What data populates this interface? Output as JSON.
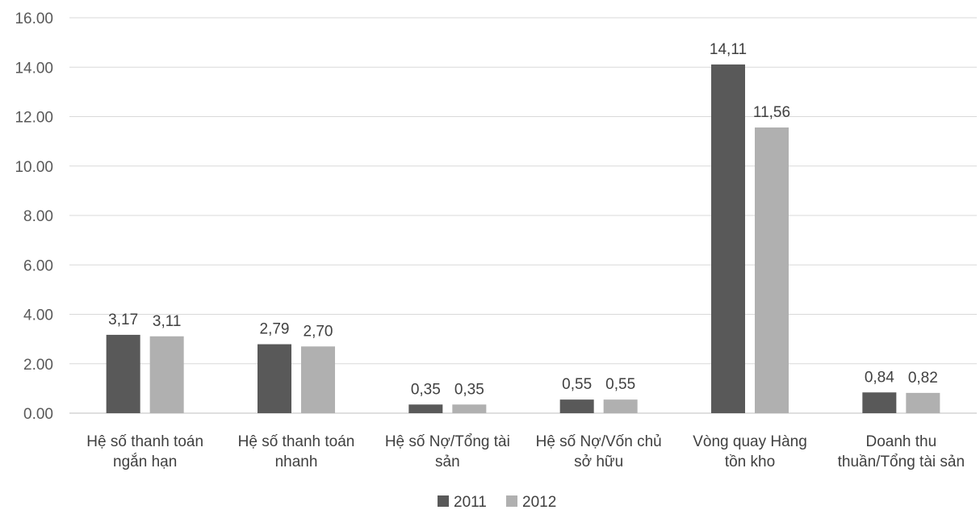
{
  "chart_data": {
    "type": "bar",
    "categories": [
      [
        "Hệ số thanh toán",
        "ngắn hạn"
      ],
      [
        "Hệ số thanh toán",
        "nhanh"
      ],
      [
        "Hệ số Nợ/Tổng tài",
        "sản"
      ],
      [
        "Hệ số Nợ/Vốn chủ",
        "sở hữu"
      ],
      [
        "Vòng quay Hàng",
        "tồn kho"
      ],
      [
        "Doanh thu",
        "thuần/Tổng tài sản"
      ]
    ],
    "series": [
      {
        "name": "2011",
        "color": "#595959",
        "values": [
          3.17,
          2.79,
          0.35,
          0.55,
          14.11,
          0.84
        ],
        "labels": [
          "3,17",
          "2,79",
          "0,35",
          "0,55",
          "14,11",
          "0,84"
        ]
      },
      {
        "name": "2012",
        "color": "#b0b0b0",
        "values": [
          3.11,
          2.7,
          0.35,
          0.55,
          11.56,
          0.82
        ],
        "labels": [
          "3,11",
          "2,70",
          "0,35",
          "0,55",
          "11,56",
          "0,82"
        ]
      }
    ],
    "y_ticks": [
      "0.00",
      "2.00",
      "4.00",
      "6.00",
      "8.00",
      "10.00",
      "12.00",
      "14.00",
      "16.00"
    ],
    "ylim": [
      0,
      16
    ],
    "grid": true,
    "legend_position": "bottom"
  }
}
